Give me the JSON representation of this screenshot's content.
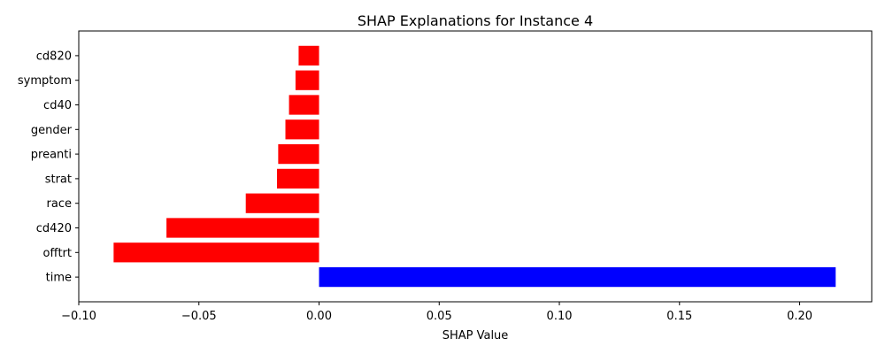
{
  "chart_data": {
    "type": "bar",
    "orientation": "horizontal",
    "title": "SHAP Explanations for Instance 4",
    "xlabel": "SHAP Value",
    "ylabel": "",
    "categories": [
      "time",
      "offtrt",
      "cd420",
      "race",
      "strat",
      "preanti",
      "gender",
      "cd40",
      "symptom",
      "cd820"
    ],
    "values": [
      0.215,
      -0.0855,
      -0.0635,
      -0.0305,
      -0.0175,
      -0.017,
      -0.014,
      -0.0125,
      -0.0098,
      -0.0085
    ],
    "xlim": [
      -0.1,
      0.23
    ],
    "xticks": [
      -0.1,
      -0.05,
      0.0,
      0.05,
      0.1,
      0.15,
      0.2
    ],
    "xtick_labels": [
      "−0.10",
      "−0.05",
      "0.00",
      "0.05",
      "0.10",
      "0.15",
      "0.20"
    ],
    "grid": false,
    "colors": {
      "positive": "#0000ff",
      "negative": "#ff0000"
    }
  }
}
